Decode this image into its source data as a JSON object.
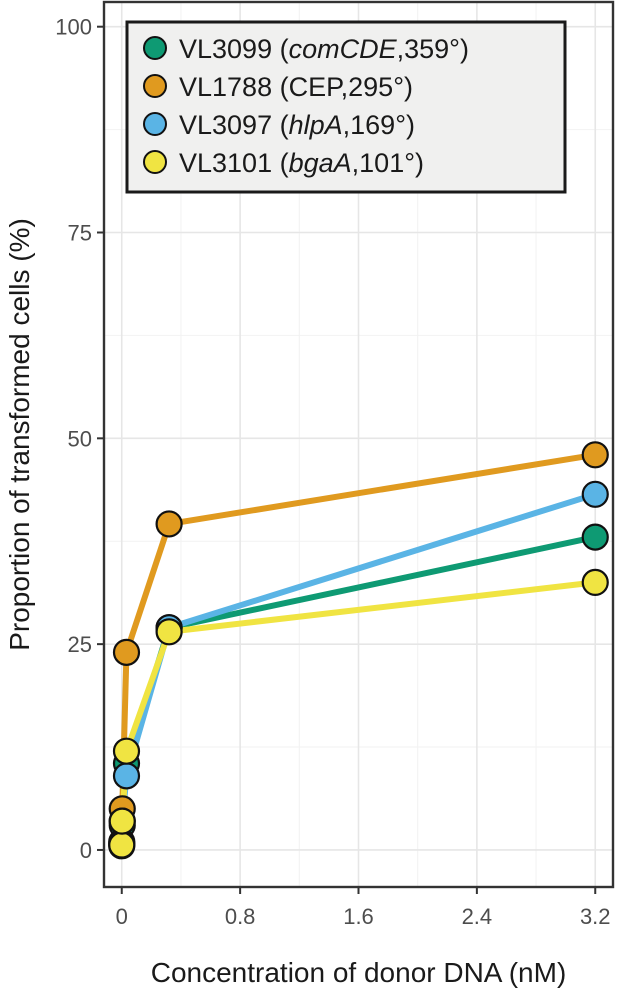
{
  "chart_data": {
    "type": "line",
    "xlabel": "Concentration of donor DNA (nM)",
    "ylabel": "Proportion of transformed cells (%)",
    "xlim": [
      -0.12,
      3.32
    ],
    "ylim": [
      -4.5,
      103
    ],
    "x_ticks": [
      0,
      0.8,
      1.6,
      2.4,
      3.2
    ],
    "x_tick_labels": [
      "0",
      "0.8",
      "1.6",
      "2.4",
      "3.2"
    ],
    "y_ticks": [
      0,
      25,
      50,
      75,
      100
    ],
    "y_tick_labels": [
      "0",
      "25",
      "50",
      "75",
      "100"
    ],
    "grid": true,
    "legend_position": "top-left",
    "series": [
      {
        "name": "VL3099",
        "label_parts": [
          "VL3099 (",
          "comCDE",
          ",359°)"
        ],
        "color": "#0e9a73",
        "x": [
          0,
          0.0032,
          0.032,
          0.32,
          3.2
        ],
        "y": [
          0.5,
          3,
          10.5,
          27,
          38
        ]
      },
      {
        "name": "VL1788",
        "label_parts": [
          "VL1788 (",
          "CEP",
          ",295°)"
        ],
        "label_italic": false,
        "color": "#e09a1f",
        "x": [
          0,
          0.0032,
          0.032,
          0.32,
          3.2
        ],
        "y": [
          1,
          5,
          24,
          39.6,
          48
        ]
      },
      {
        "name": "VL3097",
        "label_parts": [
          "VL3097 (",
          "hlpA",
          ",169°)"
        ],
        "color": "#5ab4e5",
        "x": [
          0,
          0.0032,
          0.032,
          0.32,
          3.2
        ],
        "y": [
          0.8,
          3.5,
          9,
          27,
          43.2
        ]
      },
      {
        "name": "VL3101",
        "label_parts": [
          "VL3101 (",
          "bgaA",
          ",101°)"
        ],
        "color": "#f0e442",
        "x": [
          0,
          0.0032,
          0.032,
          0.32,
          3.2
        ],
        "y": [
          0.6,
          3.5,
          12,
          26.5,
          32.5
        ]
      }
    ]
  }
}
